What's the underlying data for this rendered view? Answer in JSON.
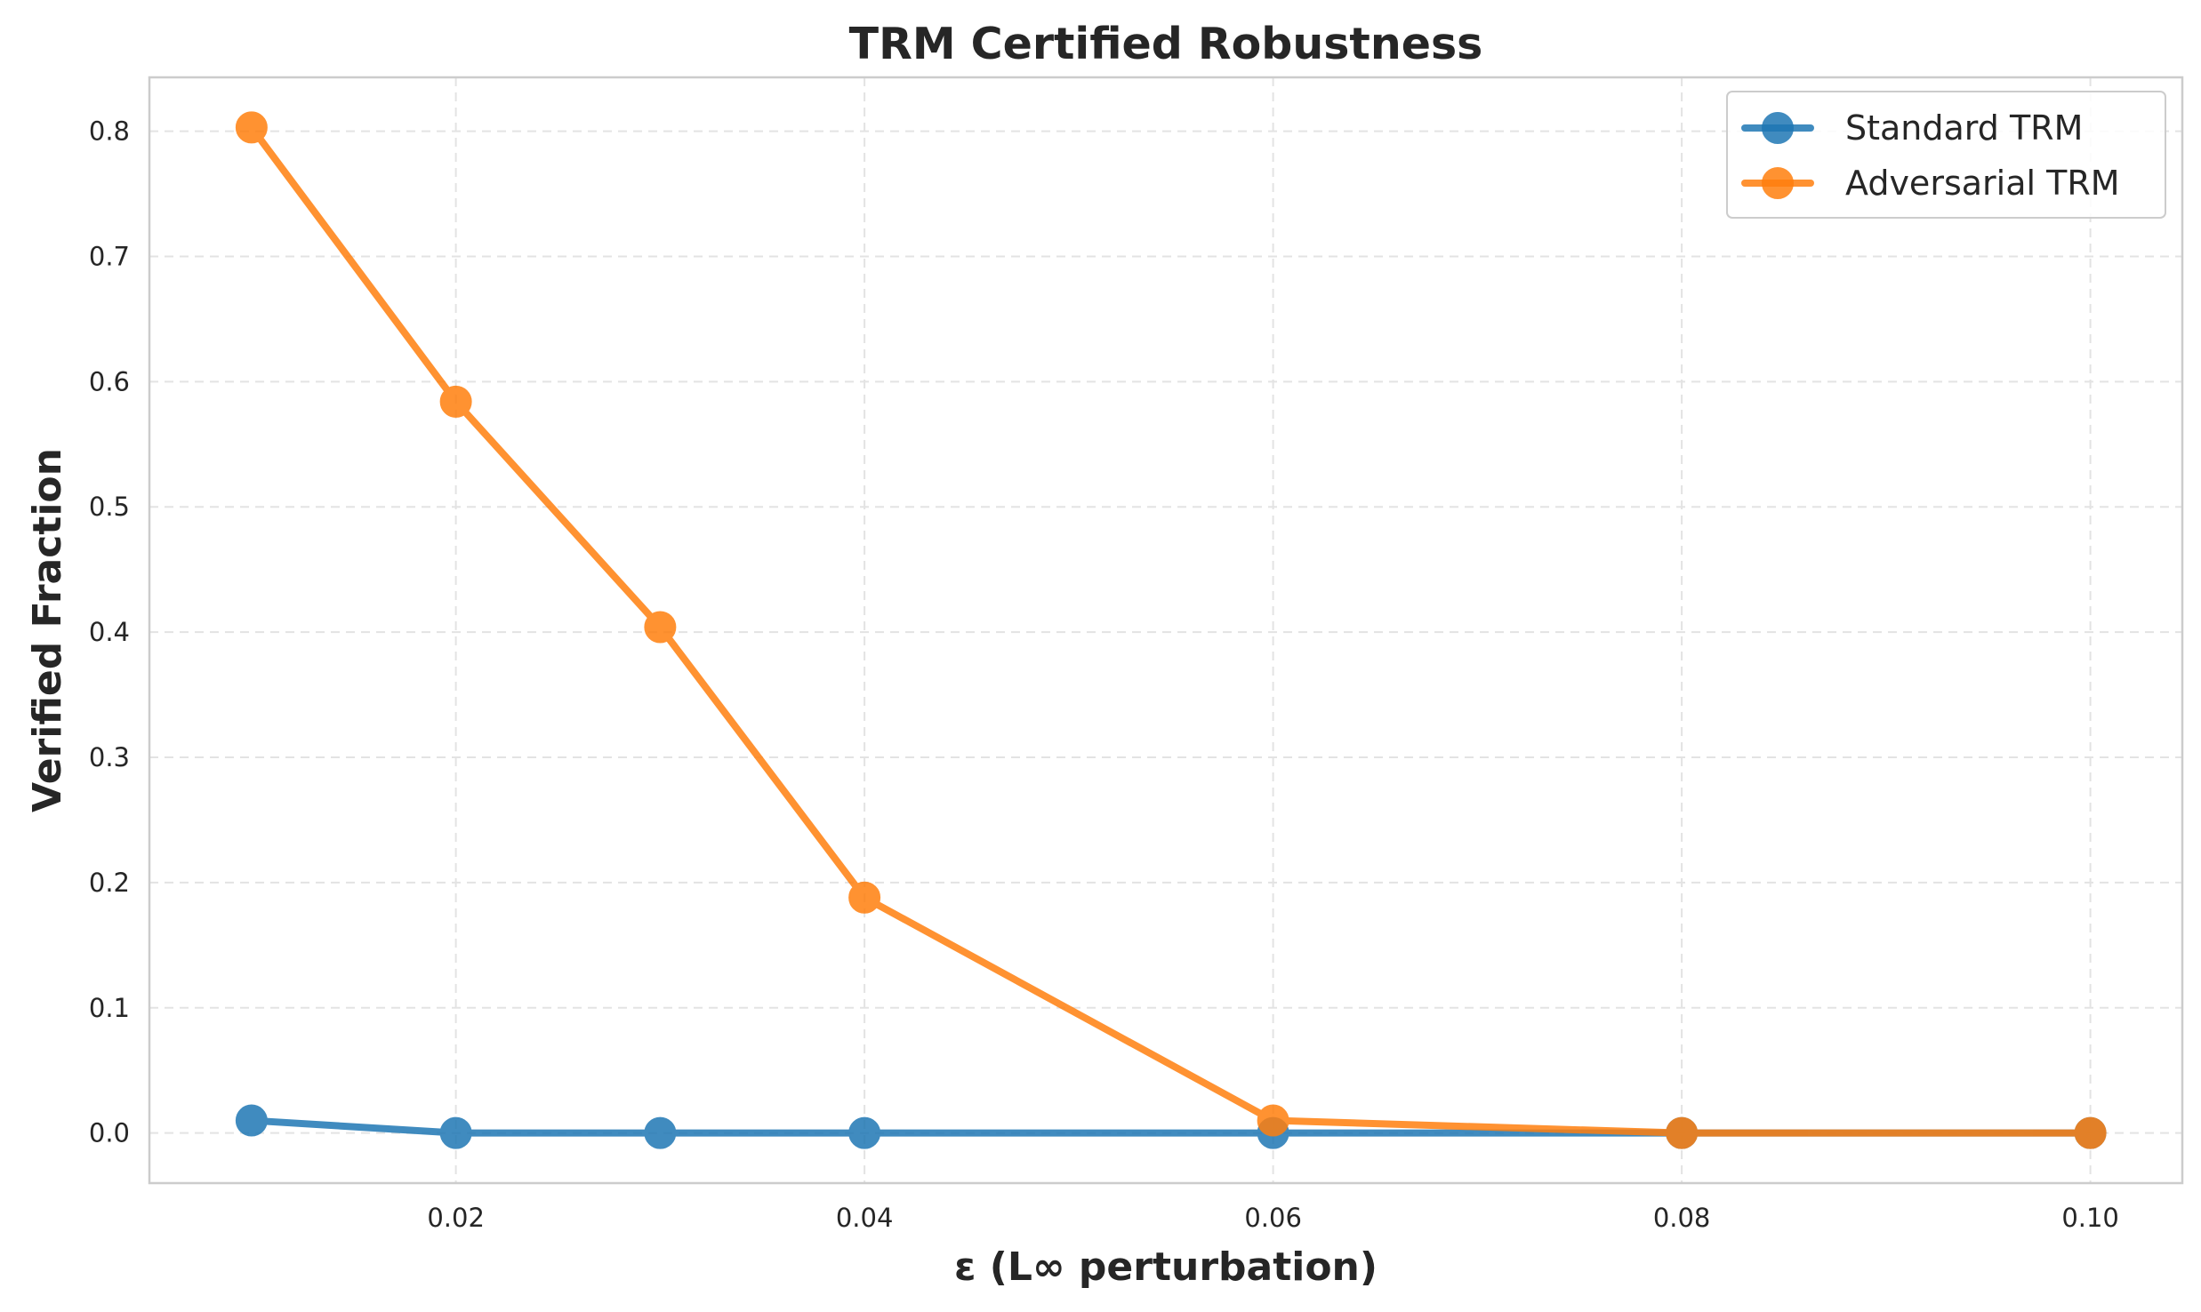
{
  "chart_data": {
    "type": "line",
    "title": "TRM Certified Robustness",
    "xlabel": "ε (L∞ perturbation)",
    "ylabel": "Verified Fraction",
    "xlim": [
      0.005,
      0.1045
    ],
    "ylim": [
      -0.04,
      0.843
    ],
    "xticks": [
      0.02,
      0.04,
      0.06,
      0.08,
      0.1
    ],
    "xtick_labels": [
      "0.02",
      "0.04",
      "0.06",
      "0.08",
      "0.10"
    ],
    "yticks": [
      0.0,
      0.1,
      0.2,
      0.3,
      0.4,
      0.5,
      0.6,
      0.7,
      0.8
    ],
    "ytick_labels": [
      "0.0",
      "0.1",
      "0.2",
      "0.3",
      "0.4",
      "0.5",
      "0.6",
      "0.7",
      "0.8"
    ],
    "grid": true,
    "legend_position": "top-right",
    "x": [
      0.01,
      0.02,
      0.03,
      0.04,
      0.06,
      0.08,
      0.1
    ],
    "series": [
      {
        "name": "Standard TRM",
        "color": "#1f77b4",
        "values": [
          0.01,
          0.0,
          0.0,
          0.0,
          0.0,
          0.0,
          0.0
        ]
      },
      {
        "name": "Adversarial TRM",
        "color": "#ff7f0e",
        "values": [
          0.803,
          0.584,
          0.404,
          0.188,
          0.01,
          0.0,
          0.0
        ]
      }
    ]
  }
}
